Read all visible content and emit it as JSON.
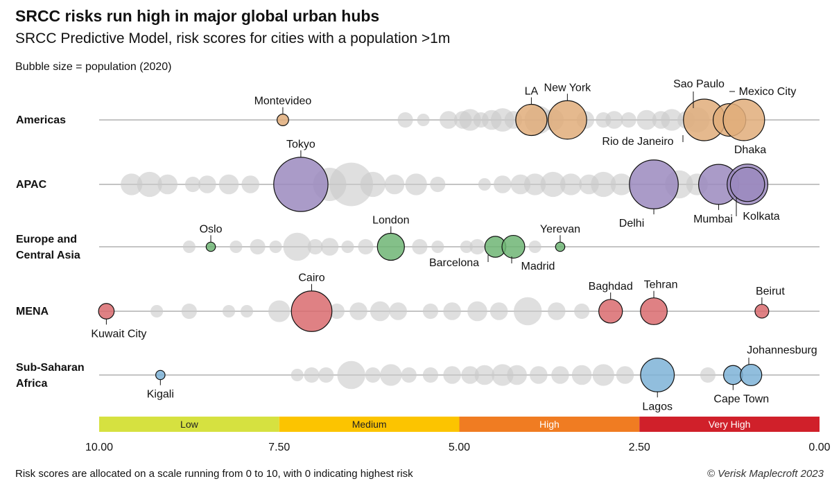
{
  "header": {
    "title": "SRCC risks run high in major global urban hubs",
    "subtitle": "SRCC Predictive Model, risk scores for cities with a population >1m",
    "note": "Bubble size = population (2020)"
  },
  "footer": {
    "footnote": "Risk scores are allocated on a scale running from 0 to 10, with 0 indicating highest risk",
    "credit": "© Verisk Maplecroft 2023"
  },
  "chart_data": {
    "type": "scatter",
    "x_axis": {
      "range": [
        10,
        0
      ],
      "ticks": [
        "10.00",
        "7.50",
        "5.00",
        "2.50",
        "0.00"
      ],
      "tick_values": [
        10,
        7.5,
        5,
        2.5,
        0
      ]
    },
    "risk_bands": [
      {
        "label": "Low",
        "from": 10,
        "to": 7.5,
        "color": "#d6e140"
      },
      {
        "label": "Medium",
        "from": 7.5,
        "to": 5,
        "color": "#fcc400"
      },
      {
        "label": "High",
        "from": 5,
        "to": 2.5,
        "color": "#f07c22"
      },
      {
        "label": "Very High",
        "from": 2.5,
        "to": 0,
        "color": "#d0202a"
      }
    ],
    "regions": [
      {
        "name": "Americas",
        "color": "#e0ad7a",
        "highlighted": [
          {
            "city": "Montevideo",
            "score": 7.45,
            "population_m": 1.7
          },
          {
            "city": "LA",
            "score": 4.0,
            "population_m": 12.4
          },
          {
            "city": "New York",
            "score": 3.5,
            "population_m": 18.8
          },
          {
            "city": "Sao Paulo",
            "score": 1.6,
            "population_m": 22.0
          },
          {
            "city": "Rio de Janeiro",
            "score": 1.25,
            "population_m": 13.5
          },
          {
            "city": "Mexico City",
            "score": 1.05,
            "population_m": 21.8
          }
        ],
        "others": [
          {
            "score": 5.75,
            "population_m": 3
          },
          {
            "score": 5.5,
            "population_m": 2
          },
          {
            "score": 5.15,
            "population_m": 4
          },
          {
            "score": 4.95,
            "population_m": 4
          },
          {
            "score": 4.85,
            "population_m": 6
          },
          {
            "score": 4.7,
            "population_m": 3
          },
          {
            "score": 4.55,
            "population_m": 5
          },
          {
            "score": 4.4,
            "population_m": 7
          },
          {
            "score": 4.25,
            "population_m": 4
          },
          {
            "score": 3.9,
            "population_m": 10
          },
          {
            "score": 3.7,
            "population_m": 6
          },
          {
            "score": 3.25,
            "population_m": 4
          },
          {
            "score": 3.0,
            "population_m": 3
          },
          {
            "score": 2.85,
            "population_m": 4
          },
          {
            "score": 2.65,
            "population_m": 3
          },
          {
            "score": 2.4,
            "population_m": 5
          },
          {
            "score": 2.2,
            "population_m": 4
          },
          {
            "score": 2.05,
            "population_m": 6
          },
          {
            "score": 1.85,
            "population_m": 4
          },
          {
            "score": 1.7,
            "population_m": 8
          }
        ]
      },
      {
        "name": "APAC",
        "color": "#9b89be",
        "highlighted": [
          {
            "city": "Tokyo",
            "score": 7.2,
            "population_m": 37.4
          },
          {
            "city": "Delhi",
            "score": 2.3,
            "population_m": 30.3
          },
          {
            "city": "Mumbai",
            "score": 1.4,
            "population_m": 20.4
          },
          {
            "city": "Dhaka",
            "score": 1.0,
            "population_m": 21.0
          },
          {
            "city": "Kolkata",
            "score": 1.0,
            "population_m": 14.9
          }
        ],
        "others": [
          {
            "score": 9.55,
            "population_m": 6
          },
          {
            "score": 9.3,
            "population_m": 8
          },
          {
            "score": 9.05,
            "population_m": 5
          },
          {
            "score": 8.7,
            "population_m": 3
          },
          {
            "score": 8.5,
            "population_m": 4
          },
          {
            "score": 8.2,
            "population_m": 5
          },
          {
            "score": 7.9,
            "population_m": 4
          },
          {
            "score": 6.8,
            "population_m": 14
          },
          {
            "score": 6.5,
            "population_m": 24
          },
          {
            "score": 6.2,
            "population_m": 8
          },
          {
            "score": 5.9,
            "population_m": 5
          },
          {
            "score": 5.6,
            "population_m": 6
          },
          {
            "score": 5.3,
            "population_m": 3
          },
          {
            "score": 4.65,
            "population_m": 2
          },
          {
            "score": 4.4,
            "population_m": 4
          },
          {
            "score": 4.15,
            "population_m": 5
          },
          {
            "score": 3.95,
            "population_m": 6
          },
          {
            "score": 3.7,
            "population_m": 8
          },
          {
            "score": 3.45,
            "population_m": 6
          },
          {
            "score": 3.2,
            "population_m": 5
          },
          {
            "score": 3.0,
            "population_m": 8
          },
          {
            "score": 2.75,
            "population_m": 6
          },
          {
            "score": 1.95,
            "population_m": 10
          },
          {
            "score": 1.7,
            "population_m": 6
          }
        ]
      },
      {
        "name": "Europe and Central Asia",
        "color": "#6fb574",
        "highlighted": [
          {
            "city": "Oslo",
            "score": 8.45,
            "population_m": 1.1
          },
          {
            "city": "London",
            "score": 5.95,
            "population_m": 9.3
          },
          {
            "city": "Barcelona",
            "score": 4.5,
            "population_m": 5.6
          },
          {
            "city": "Madrid",
            "score": 4.25,
            "population_m": 6.6
          },
          {
            "city": "Yerevan",
            "score": 3.6,
            "population_m": 1.1
          }
        ],
        "others": [
          {
            "score": 8.75,
            "population_m": 2
          },
          {
            "score": 8.1,
            "population_m": 2
          },
          {
            "score": 7.8,
            "population_m": 3
          },
          {
            "score": 7.55,
            "population_m": 2
          },
          {
            "score": 7.25,
            "population_m": 10
          },
          {
            "score": 7.0,
            "population_m": 3
          },
          {
            "score": 6.8,
            "population_m": 4
          },
          {
            "score": 6.55,
            "population_m": 2
          },
          {
            "score": 6.3,
            "population_m": 3
          },
          {
            "score": 5.55,
            "population_m": 3
          },
          {
            "score": 5.3,
            "population_m": 2
          },
          {
            "score": 4.9,
            "population_m": 2
          },
          {
            "score": 4.75,
            "population_m": 3
          },
          {
            "score": 3.95,
            "population_m": 2
          }
        ]
      },
      {
        "name": "MENA",
        "color": "#d96b6f",
        "highlighted": [
          {
            "city": "Kuwait City",
            "score": 9.9,
            "population_m": 3.1
          },
          {
            "city": "Cairo",
            "score": 7.05,
            "population_m": 20.9
          },
          {
            "city": "Baghdad",
            "score": 2.9,
            "population_m": 7.1
          },
          {
            "city": "Tehran",
            "score": 2.3,
            "population_m": 9.1
          },
          {
            "city": "Beirut",
            "score": 0.8,
            "population_m": 2.4
          }
        ],
        "others": [
          {
            "score": 9.2,
            "population_m": 2
          },
          {
            "score": 8.75,
            "population_m": 3
          },
          {
            "score": 8.2,
            "population_m": 2
          },
          {
            "score": 7.95,
            "population_m": 2
          },
          {
            "score": 7.5,
            "population_m": 6
          },
          {
            "score": 6.7,
            "population_m": 3
          },
          {
            "score": 6.4,
            "population_m": 4
          },
          {
            "score": 6.1,
            "population_m": 5
          },
          {
            "score": 5.85,
            "population_m": 4
          },
          {
            "score": 5.4,
            "population_m": 3
          },
          {
            "score": 5.1,
            "population_m": 4
          },
          {
            "score": 4.75,
            "population_m": 5
          },
          {
            "score": 4.45,
            "population_m": 4
          },
          {
            "score": 4.05,
            "population_m": 10
          },
          {
            "score": 3.65,
            "population_m": 4
          },
          {
            "score": 3.3,
            "population_m": 3
          }
        ]
      },
      {
        "name": "Sub-Saharan Africa",
        "color": "#7eb3d7",
        "highlighted": [
          {
            "city": "Kigali",
            "score": 9.15,
            "population_m": 1.1
          },
          {
            "city": "Lagos",
            "score": 2.25,
            "population_m": 14.4
          },
          {
            "city": "Cape Town",
            "score": 1.2,
            "population_m": 4.6
          },
          {
            "city": "Johannesburg",
            "score": 0.95,
            "population_m": 5.8
          }
        ],
        "others": [
          {
            "score": 7.25,
            "population_m": 2
          },
          {
            "score": 7.05,
            "population_m": 3
          },
          {
            "score": 6.85,
            "population_m": 3
          },
          {
            "score": 6.5,
            "population_m": 10
          },
          {
            "score": 6.2,
            "population_m": 3
          },
          {
            "score": 5.95,
            "population_m": 6
          },
          {
            "score": 5.7,
            "population_m": 3
          },
          {
            "score": 5.4,
            "population_m": 3
          },
          {
            "score": 5.1,
            "population_m": 4
          },
          {
            "score": 4.85,
            "population_m": 4
          },
          {
            "score": 4.65,
            "population_m": 5
          },
          {
            "score": 4.4,
            "population_m": 6
          },
          {
            "score": 4.2,
            "population_m": 5
          },
          {
            "score": 3.9,
            "population_m": 4
          },
          {
            "score": 3.6,
            "population_m": 4
          },
          {
            "score": 3.3,
            "population_m": 5
          },
          {
            "score": 3.0,
            "population_m": 6
          },
          {
            "score": 2.7,
            "population_m": 4
          },
          {
            "score": 1.55,
            "population_m": 3
          }
        ]
      }
    ]
  }
}
